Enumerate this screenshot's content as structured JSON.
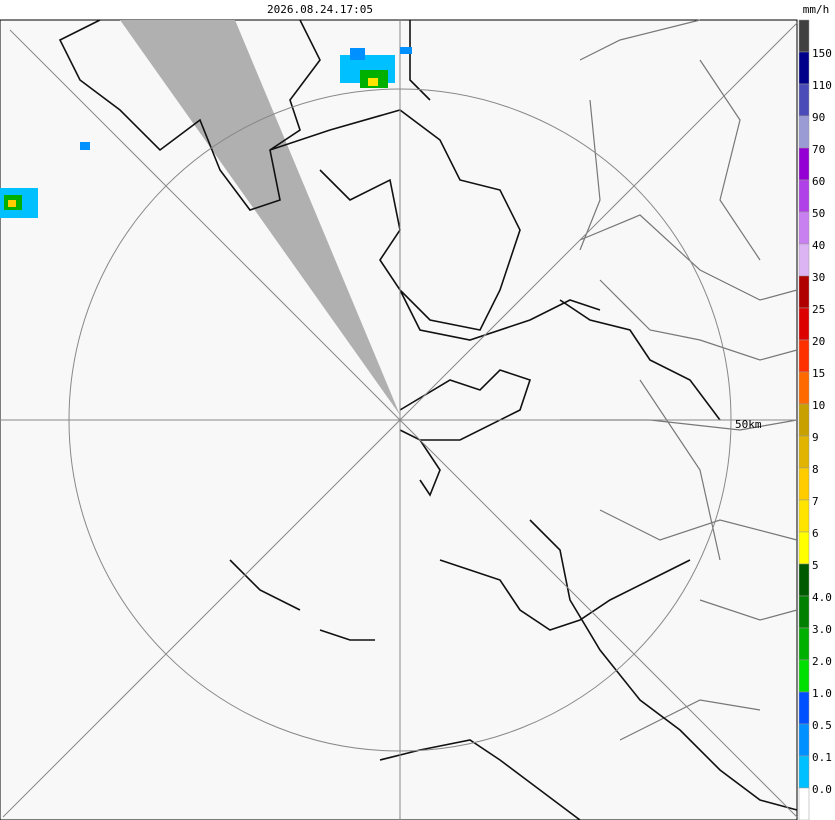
{
  "header": {
    "timestamp": "2026.08.24.17:05",
    "unit": "mm/h"
  },
  "map": {
    "range_label": "50km"
  },
  "legend": {
    "labels": [
      "150",
      "110",
      "90",
      "70",
      "60",
      "50",
      "40",
      "30",
      "25",
      "20",
      "15",
      "10",
      "9",
      "8",
      "7",
      "6",
      "5",
      "4.0",
      "3.0",
      "2.0",
      "1.0",
      "0.5",
      "0.1",
      "0.0"
    ],
    "colors": [
      "#404040",
      "#00008b",
      "#4a4ab8",
      "#9a9ad4",
      "#9400d3",
      "#b040e8",
      "#c880f0",
      "#dcb4f4",
      "#b00000",
      "#dd0000",
      "#ff3000",
      "#ff6a00",
      "#c8a000",
      "#e0b400",
      "#ffcc00",
      "#ffe400",
      "#ffff00",
      "#005a00",
      "#008000",
      "#00b000",
      "#00e000",
      "#0050ff",
      "#0090ff",
      "#00c0ff",
      "#ffffff"
    ]
  }
}
